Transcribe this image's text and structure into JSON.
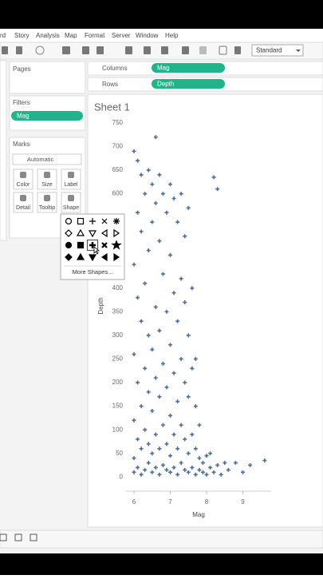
{
  "ui": {
    "menu": [
      "rd",
      "Story",
      "Analysis",
      "Map",
      "Format",
      "Server",
      "Window",
      "Help"
    ],
    "toolbar": {
      "view": "Standard"
    },
    "pages": {
      "title": "Pages"
    },
    "filters": {
      "title": "Filters",
      "pill": "Mag"
    },
    "marks": {
      "title": "Marks",
      "type": "Automatic",
      "buttons": [
        "Color",
        "Size",
        "Label",
        "Detail",
        "Tooltip",
        "Shape"
      ]
    },
    "shelves": {
      "columns": {
        "label": "Columns",
        "pill": "Mag"
      },
      "rows": {
        "label": "Rows",
        "pill": "Depth"
      }
    },
    "sheet": {
      "title": "Sheet 1"
    },
    "shape_popup": {
      "more": "More Shapes..."
    }
  },
  "chart_data": {
    "type": "scatter",
    "x_label": "Mag",
    "y_label": "Depth",
    "color": "#4e6e9b",
    "marker": "plus",
    "xlim": [
      5.78,
      9.78
    ],
    "ylim": [
      -30,
      760
    ],
    "xticks": [
      6,
      7,
      8,
      9
    ],
    "yticks": [
      0,
      50,
      100,
      150,
      200,
      250,
      300,
      350,
      400,
      450,
      500,
      550,
      600,
      650,
      700,
      750
    ],
    "grid": false,
    "x": [
      6,
      6,
      6,
      6,
      6,
      6,
      6.1,
      6.1,
      6.1,
      6.1,
      6.1,
      6.1,
      6.2,
      6.2,
      6.2,
      6.2,
      6.2,
      6.2,
      6.3,
      6.3,
      6.3,
      6.3,
      6.3,
      6.4,
      6.4,
      6.4,
      6.4,
      6.4,
      6.4,
      6.5,
      6.5,
      6.5,
      6.5,
      6.5,
      6.5,
      6.6,
      6.6,
      6.6,
      6.6,
      6.6,
      6.6,
      6.7,
      6.7,
      6.7,
      6.7,
      6.7,
      6.7,
      6.8,
      6.8,
      6.8,
      6.8,
      6.8,
      6.9,
      6.9,
      6.9,
      6.9,
      6.9,
      7,
      7,
      7,
      7,
      7,
      7,
      7.1,
      7.1,
      7.1,
      7.1,
      7.1,
      7.2,
      7.2,
      7.2,
      7.2,
      7.2,
      7.3,
      7.3,
      7.3,
      7.3,
      7.3,
      7.4,
      7.4,
      7.4,
      7.4,
      7.4,
      7.5,
      7.5,
      7.5,
      7.5,
      7.5,
      7.6,
      7.6,
      7.6,
      7.6,
      7.7,
      7.7,
      7.7,
      7.7,
      7.8,
      7.8,
      7.8,
      7.9,
      7.9,
      8,
      8,
      8.1,
      8.1,
      8.2,
      8.2,
      8.3,
      8.3,
      8.4,
      8.5,
      8.6,
      8.8,
      9,
      9.2,
      9.6
    ],
    "y": [
      10,
      40,
      120,
      260,
      450,
      690,
      20,
      80,
      200,
      380,
      560,
      670,
      5,
      60,
      150,
      330,
      520,
      640,
      15,
      100,
      230,
      410,
      600,
      30,
      70,
      180,
      300,
      480,
      650,
      10,
      50,
      140,
      270,
      540,
      620,
      20,
      90,
      210,
      360,
      580,
      720,
      5,
      60,
      170,
      310,
      500,
      640,
      25,
      110,
      240,
      430,
      600,
      15,
      70,
      190,
      350,
      560,
      10,
      45,
      130,
      280,
      470,
      620,
      20,
      90,
      220,
      390,
      590,
      5,
      60,
      160,
      330,
      540,
      30,
      110,
      250,
      420,
      600,
      15,
      80,
      200,
      370,
      510,
      10,
      50,
      170,
      300,
      570,
      20,
      90,
      230,
      400,
      5,
      60,
      150,
      250,
      15,
      40,
      110,
      10,
      30,
      5,
      45,
      20,
      50,
      10,
      635,
      25,
      610,
      5,
      30,
      15,
      30,
      10,
      25,
      35
    ]
  }
}
